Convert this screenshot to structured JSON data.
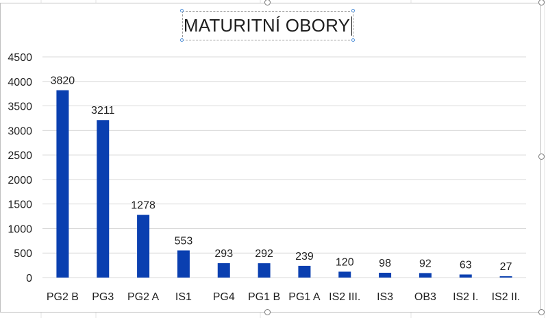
{
  "chart_data": {
    "type": "bar",
    "title": "MATURITNÍ OBORY",
    "categories": [
      "PG2 B",
      "PG3",
      "PG2 A",
      "IS1",
      "PG4",
      "PG1 B",
      "PG1 A",
      "IS2 III.",
      "IS3",
      "OB3",
      "IS2 I.",
      "IS2 II."
    ],
    "values": [
      3820,
      3211,
      1278,
      553,
      293,
      292,
      239,
      120,
      98,
      92,
      63,
      27
    ],
    "ylim": [
      0,
      4500
    ],
    "yticks": [
      0,
      500,
      1000,
      1500,
      2000,
      2500,
      3000,
      3500,
      4000,
      4500
    ],
    "grid": true,
    "bar_color": "#0a3fb0",
    "data_labels": true
  },
  "colors": {
    "gridline": "#d9d9d9",
    "axis_text": "#1f1f1f"
  }
}
